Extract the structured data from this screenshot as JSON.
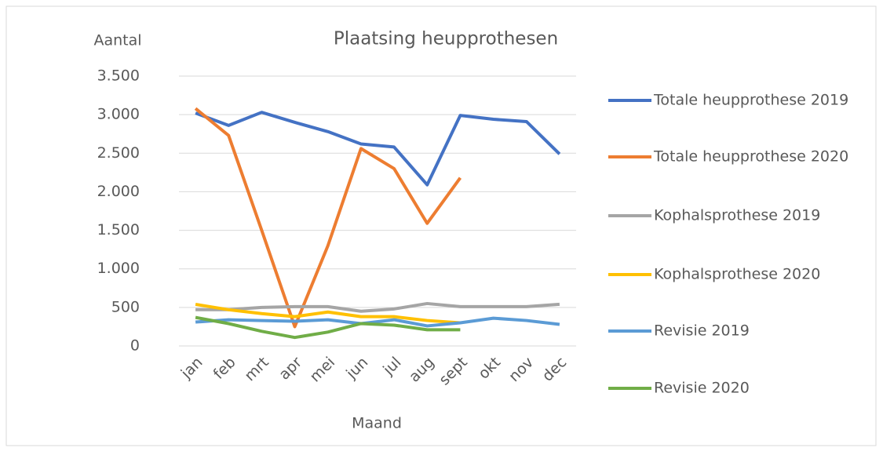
{
  "chart_data": {
    "type": "line",
    "title": "Plaatsing heupprothesen",
    "y_label": "Aantal",
    "x_label": "Maand",
    "categories": [
      "jan",
      "feb",
      "mrt",
      "apr",
      "mei",
      "jun",
      "jul",
      "aug",
      "sept",
      "okt",
      "nov",
      "dec"
    ],
    "ylim": [
      0,
      3500
    ],
    "yticks": [
      0,
      500,
      {
        "value": 1000,
        "label": "1.000"
      },
      {
        "value": 1500,
        "label": "1.500"
      },
      {
        "value": 2000,
        "label": "2.000"
      },
      {
        "value": 2500,
        "label": "2.500"
      },
      {
        "value": 3000,
        "label": "3.000"
      },
      {
        "value": 3500,
        "label": "3.500"
      }
    ],
    "grid": true,
    "legend": "right",
    "series": [
      {
        "name": "Totale heupprothese 2019",
        "color": "#4472c4",
        "values": [
          3020,
          2860,
          3030,
          2900,
          2780,
          2620,
          2580,
          2090,
          2990,
          2940,
          2910,
          2490
        ]
      },
      {
        "name": "Totale heupprothese 2020",
        "color": "#ed7d31",
        "values": [
          3080,
          2730,
          1500,
          250,
          1300,
          2560,
          2300,
          1590,
          2180,
          null,
          null,
          null
        ]
      },
      {
        "name": "Kophalsprothese 2019",
        "color": "#a5a5a5",
        "values": [
          470,
          470,
          500,
          510,
          510,
          450,
          480,
          550,
          510,
          510,
          510,
          540
        ]
      },
      {
        "name": "Kophalsprothese 2020",
        "color": "#ffc000",
        "values": [
          540,
          470,
          420,
          380,
          440,
          380,
          380,
          330,
          300,
          null,
          null,
          null
        ]
      },
      {
        "name": "Revisie 2019",
        "color": "#5b9bd5",
        "values": [
          310,
          340,
          330,
          320,
          340,
          290,
          340,
          260,
          300,
          360,
          330,
          280
        ]
      },
      {
        "name": "Revisie 2020",
        "color": "#70ad47",
        "values": [
          370,
          290,
          190,
          110,
          180,
          290,
          270,
          210,
          210,
          null,
          null,
          null
        ]
      }
    ]
  }
}
